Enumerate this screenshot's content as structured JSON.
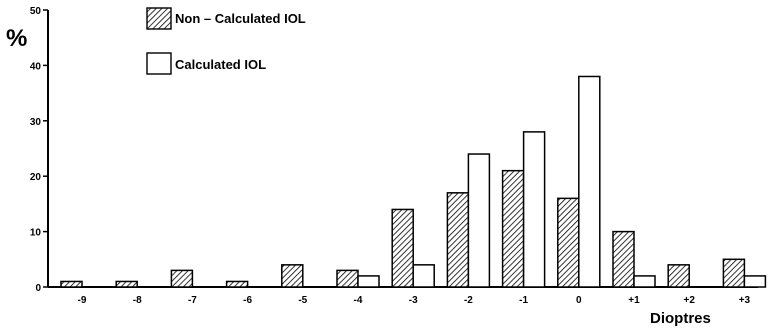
{
  "chart_data": {
    "type": "bar",
    "categories": [
      "-9",
      "-8",
      "-7",
      "-6",
      "-5",
      "-4",
      "-3",
      "-2",
      "-1",
      "0",
      "+1",
      "+2",
      "+3"
    ],
    "series": [
      {
        "name": "Non – Calculated IOL",
        "style": "hatched",
        "values": [
          1,
          1,
          3,
          1,
          4,
          3,
          14,
          17,
          21,
          16,
          10,
          4,
          5
        ]
      },
      {
        "name": "Calculated IOL",
        "style": "open",
        "values": [
          0,
          0,
          0,
          0,
          0,
          2,
          4,
          24,
          28,
          38,
          2,
          0,
          2
        ]
      }
    ],
    "title": "",
    "xlabel": "Dioptres",
    "ylabel": "%",
    "ylim": [
      0,
      50
    ],
    "yticks": [
      0,
      10,
      20,
      30,
      40,
      50
    ],
    "grid": false,
    "legend_position": "top-left",
    "colors": {
      "ink": "#000000",
      "background": "#ffffff"
    }
  }
}
